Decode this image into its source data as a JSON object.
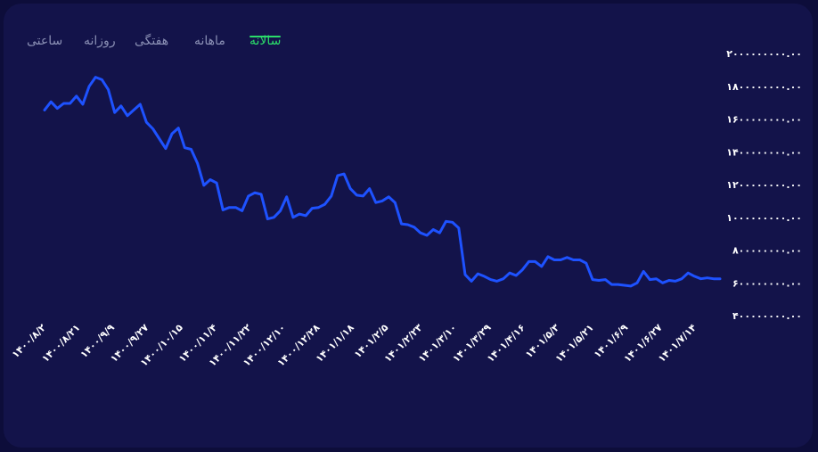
{
  "tabs": [
    {
      "id": "yearly",
      "label": "سالانه",
      "active": true
    },
    {
      "id": "monthly",
      "label": "ماهانه",
      "active": false
    },
    {
      "id": "weekly",
      "label": "هفتگی",
      "active": false
    },
    {
      "id": "daily",
      "label": "روزانه",
      "active": false
    },
    {
      "id": "hourly",
      "label": "ساعتی",
      "active": false
    }
  ],
  "colors": {
    "background": "#13134a",
    "line": "#1e52ff",
    "active_tab": "#2bdc6a",
    "inactive_tab": "#8a8fb4",
    "tick_text": "#ffffff"
  },
  "chart_data": {
    "type": "line",
    "title": "",
    "xlabel": "",
    "ylabel": "",
    "grid": false,
    "y_axis_position": "right",
    "ylim": [
      400000000,
      2000000000
    ],
    "y_ticks": [
      2000000000,
      1800000000,
      1600000000,
      1400000000,
      1200000000,
      1000000000,
      800000000,
      600000000,
      400000000
    ],
    "y_tick_labels": [
      "۲۰۰۰۰۰۰۰۰۰.۰۰",
      "۱۸۰۰۰۰۰۰۰۰.۰۰",
      "۱۶۰۰۰۰۰۰۰۰.۰۰",
      "۱۴۰۰۰۰۰۰۰۰.۰۰",
      "۱۲۰۰۰۰۰۰۰۰.۰۰",
      "۱۰۰۰۰۰۰۰۰۰.۰۰",
      "۸۰۰۰۰۰۰۰۰.۰۰",
      "۶۰۰۰۰۰۰۰۰.۰۰",
      "۴۰۰۰۰۰۰۰۰.۰۰"
    ],
    "x_tick_labels": [
      "۱۴۰۰/۸/۲",
      "۱۴۰۰/۸/۲۱",
      "۱۴۰۰/۹/۹",
      "۱۴۰۰/۹/۲۷",
      "۱۴۰۰/۱۰/۱۵",
      "۱۴۰۰/۱۱/۴",
      "۱۴۰۰/۱۱/۲۲",
      "۱۴۰۰/۱۲/۱۰",
      "۱۴۰۰/۱۲/۲۸",
      "۱۴۰۱/۱/۱۸",
      "۱۴۰۱/۲/۵",
      "۱۴۰۱/۲/۲۳",
      "۱۴۰۱/۳/۱۰",
      "۱۴۰۱/۳/۲۹",
      "۱۴۰۱/۴/۱۶",
      "۱۴۰۱/۵/۳",
      "۱۴۰۱/۵/۲۱",
      "۱۴۰۱/۶/۹",
      "۱۴۰۱/۶/۲۷",
      "۱۴۰۱/۷/۱۴"
    ],
    "series": [
      {
        "values": [
          1655000000,
          1705000000,
          1665000000,
          1695000000,
          1695000000,
          1740000000,
          1690000000,
          1800000000,
          1855000000,
          1840000000,
          1780000000,
          1640000000,
          1680000000,
          1620000000,
          1655000000,
          1690000000,
          1580000000,
          1540000000,
          1480000000,
          1420000000,
          1510000000,
          1545000000,
          1425000000,
          1415000000,
          1330000000,
          1195000000,
          1230000000,
          1210000000,
          1045000000,
          1060000000,
          1060000000,
          1040000000,
          1130000000,
          1150000000,
          1140000000,
          990000000,
          1000000000,
          1040000000,
          1125000000,
          1000000000,
          1020000000,
          1010000000,
          1055000000,
          1060000000,
          1080000000,
          1130000000,
          1255000000,
          1265000000,
          1175000000,
          1135000000,
          1130000000,
          1175000000,
          1090000000,
          1100000000,
          1125000000,
          1090000000,
          960000000,
          955000000,
          940000000,
          905000000,
          890000000,
          925000000,
          905000000,
          975000000,
          970000000,
          935000000,
          650000000,
          610000000,
          655000000,
          640000000,
          620000000,
          610000000,
          625000000,
          660000000,
          645000000,
          680000000,
          730000000,
          730000000,
          700000000,
          760000000,
          740000000,
          740000000,
          755000000,
          740000000,
          740000000,
          720000000,
          620000000,
          615000000,
          620000000,
          590000000,
          590000000,
          585000000,
          580000000,
          600000000,
          670000000,
          620000000,
          625000000,
          600000000,
          615000000,
          610000000,
          625000000,
          660000000,
          640000000,
          625000000,
          630000000,
          625000000,
          625000000
        ]
      }
    ]
  }
}
